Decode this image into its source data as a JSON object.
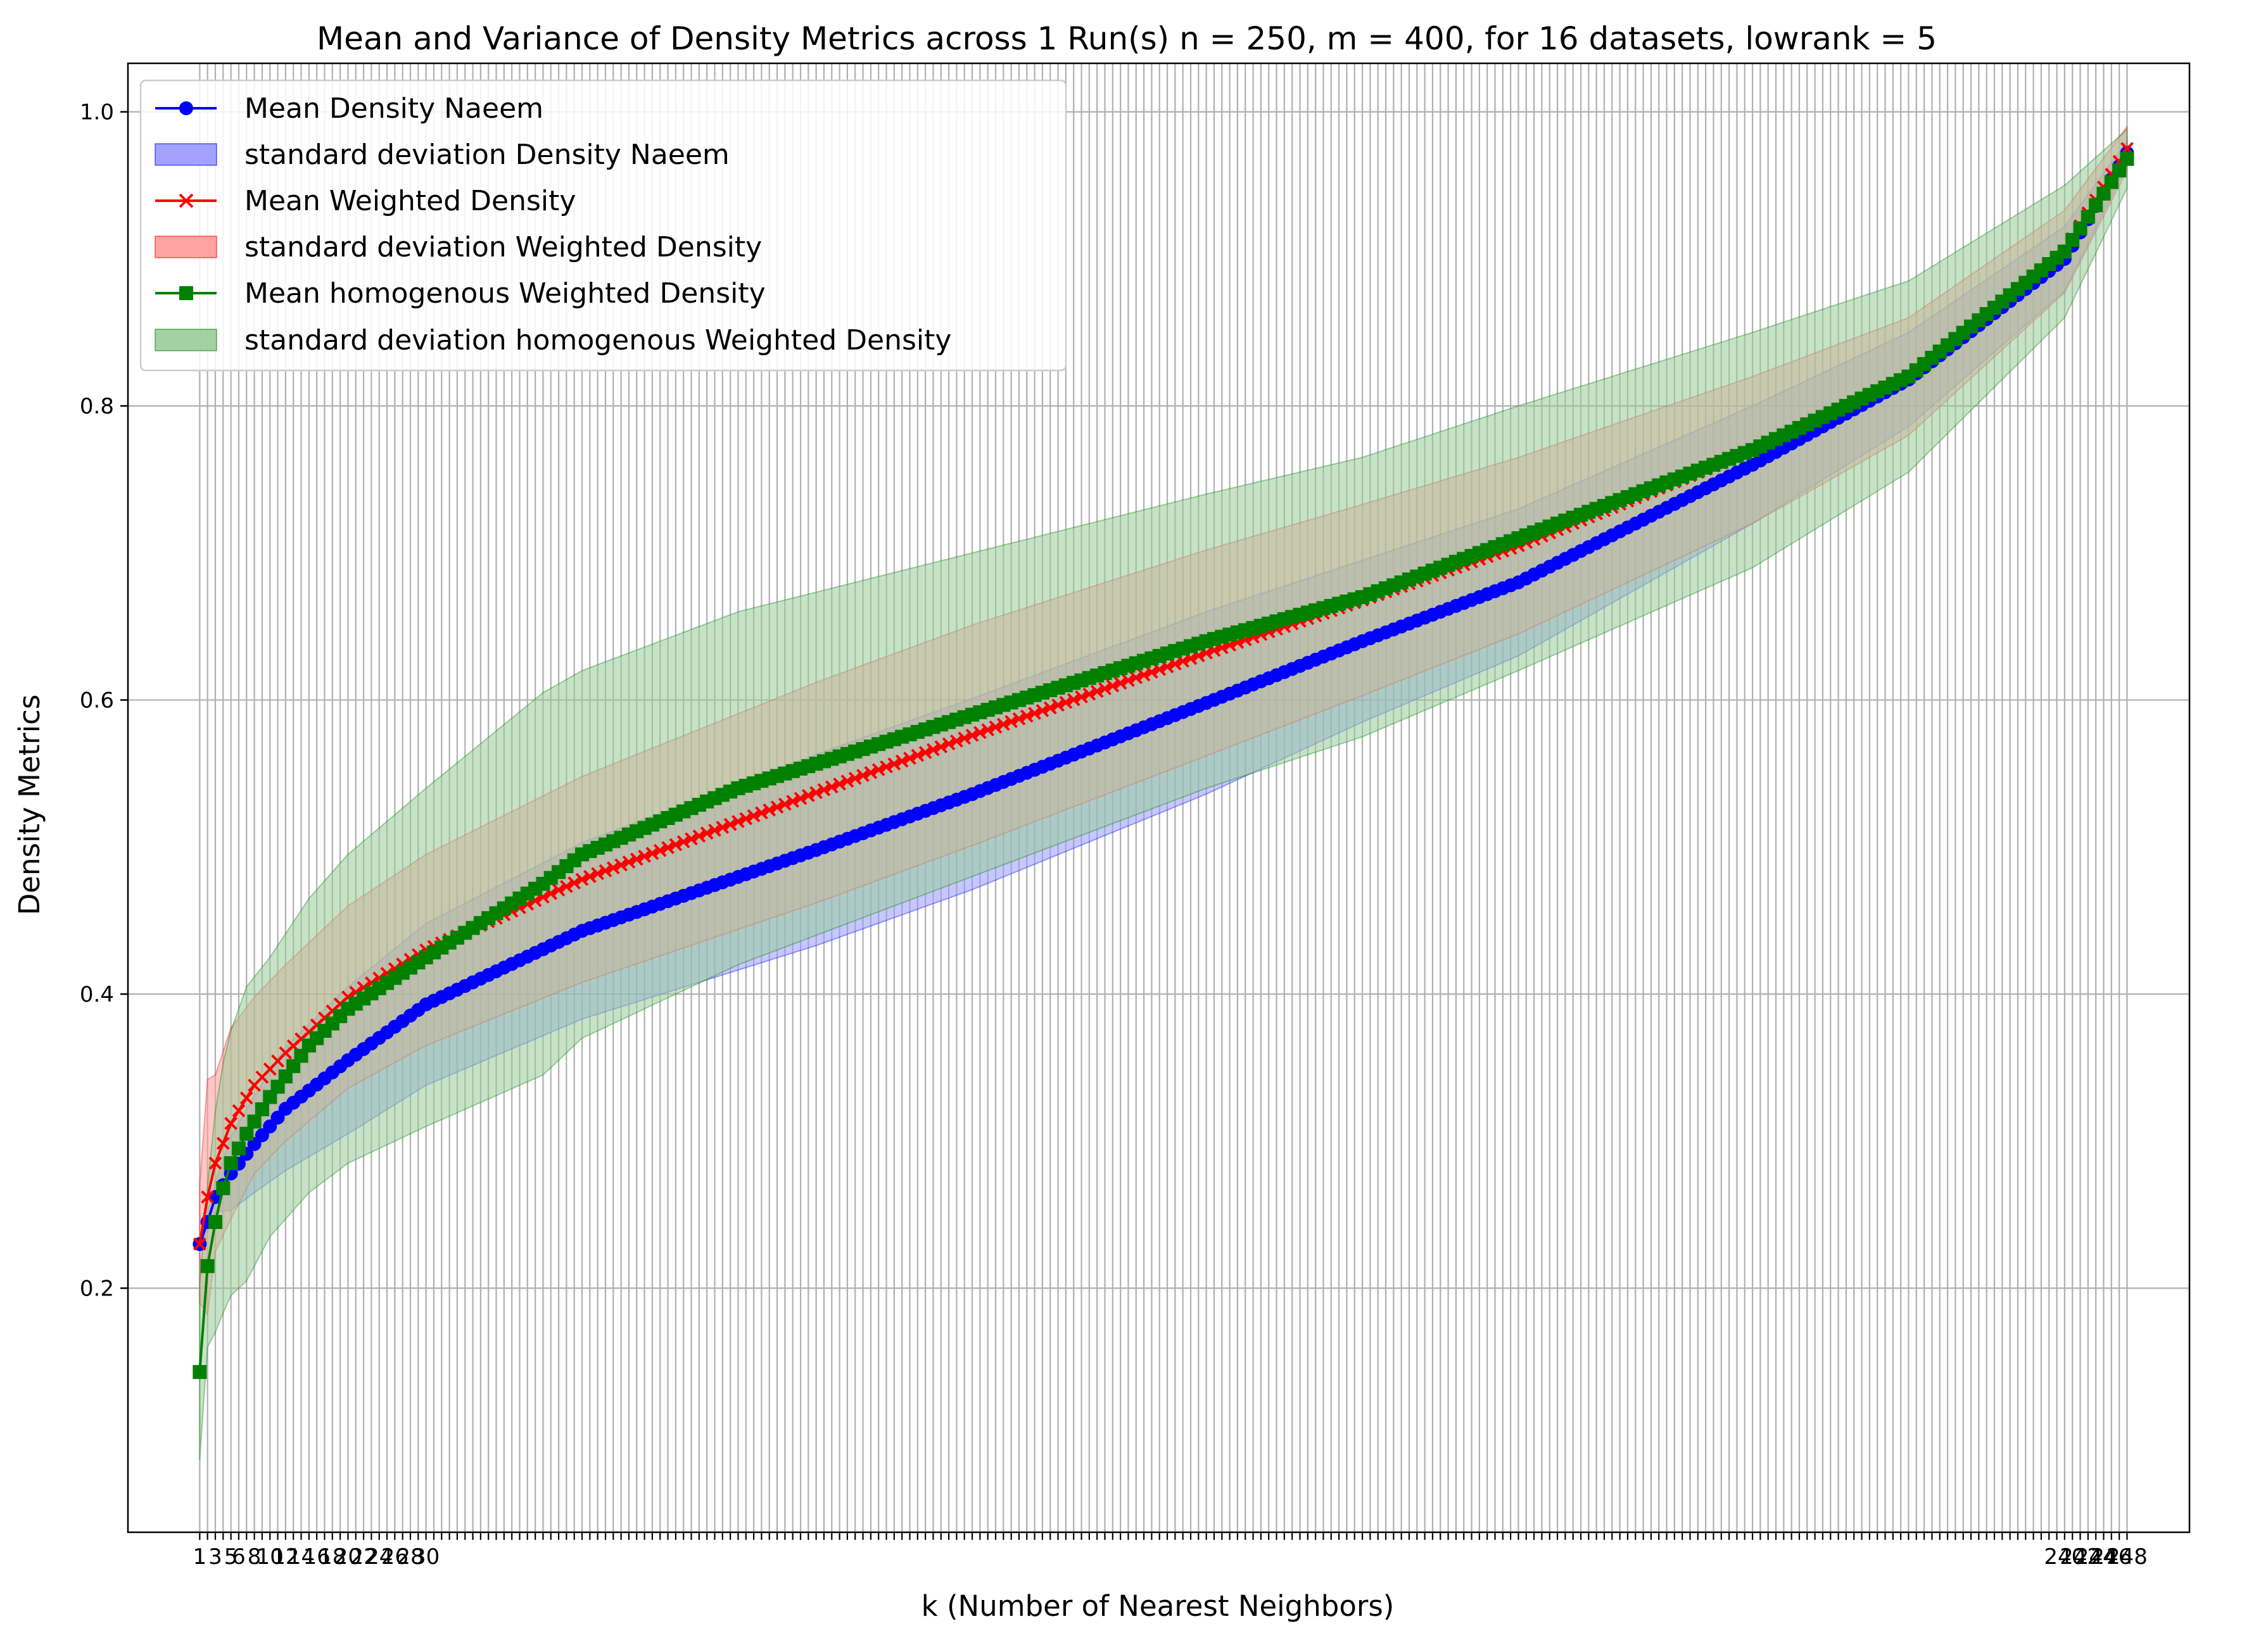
{
  "chart_data": {
    "type": "line",
    "title": "Mean and Variance of Density Metrics across 1 Run(s) n  = 250, m  = 400, for 16 datasets, lowrank = 5",
    "xlabel": "k (Number of Nearest Neighbors)",
    "ylabel": "Density Metrics",
    "xlim": [
      -8.2,
      256
    ],
    "ylim": [
      0.034,
      1.033
    ],
    "yticks": [
      0.2,
      0.4,
      0.6,
      0.8,
      1.0
    ],
    "ytick_labels": [
      "0.2",
      "0.4",
      "0.6",
      "0.8",
      "1.0"
    ],
    "x_first": 1,
    "x_last": 248,
    "xtick_labels_start": [
      "1",
      "3",
      "5",
      "6",
      "8",
      "10",
      "12",
      "14",
      "16",
      "18",
      "20",
      "22",
      "24",
      "26",
      "28",
      "30"
    ],
    "xtick_labels_end": [
      "240",
      "242",
      "244",
      "246",
      "248"
    ],
    "grid": true,
    "legend_position": "upper-left",
    "series": [
      {
        "name": "Mean Density Naeem",
        "band_name": "standard deviation Density Naeem",
        "color": "#0000ff",
        "marker": "circle",
        "anchors_x": [
          1,
          2,
          3,
          5,
          8,
          12,
          20,
          30,
          50,
          80,
          100,
          130,
          150,
          170,
          200,
          220,
          240,
          248
        ],
        "mean": [
          0.23,
          0.245,
          0.262,
          0.278,
          0.298,
          0.322,
          0.355,
          0.393,
          0.443,
          0.498,
          0.536,
          0.598,
          0.64,
          0.68,
          0.76,
          0.818,
          0.9,
          0.972
        ],
        "std": [
          0.004,
          0.006,
          0.01,
          0.025,
          0.033,
          0.042,
          0.05,
          0.055,
          0.06,
          0.065,
          0.065,
          0.062,
          0.055,
          0.05,
          0.04,
          0.032,
          0.022,
          0.008
        ]
      },
      {
        "name": "Mean Weighted Density",
        "band_name": "standard deviation Weighted Density",
        "color": "#ff0000",
        "marker": "x",
        "anchors_x": [
          1,
          2,
          3,
          5,
          8,
          12,
          20,
          30,
          50,
          80,
          100,
          130,
          150,
          170,
          200,
          220,
          240,
          248
        ],
        "mean": [
          0.23,
          0.262,
          0.285,
          0.312,
          0.338,
          0.36,
          0.398,
          0.43,
          0.478,
          0.537,
          0.576,
          0.632,
          0.668,
          0.705,
          0.77,
          0.82,
          0.905,
          0.975
        ],
        "std": [
          0.04,
          0.08,
          0.06,
          0.065,
          0.06,
          0.06,
          0.062,
          0.065,
          0.07,
          0.075,
          0.075,
          0.07,
          0.065,
          0.06,
          0.05,
          0.04,
          0.028,
          0.015
        ]
      },
      {
        "name": "Mean homogenous Weighted Density",
        "band_name": "standard deviation homogenous Weighted Density",
        "color": "#008000",
        "marker": "square",
        "anchors_x": [
          1,
          2,
          3,
          4,
          5,
          7,
          10,
          15,
          20,
          30,
          45,
          50,
          70,
          100,
          130,
          150,
          170,
          200,
          220,
          240,
          248
        ],
        "mean": [
          0.143,
          0.215,
          0.245,
          0.268,
          0.285,
          0.305,
          0.33,
          0.365,
          0.39,
          0.425,
          0.475,
          0.495,
          0.54,
          0.59,
          0.64,
          0.67,
          0.71,
          0.77,
          0.82,
          0.905,
          0.968
        ],
        "std": [
          0.06,
          0.055,
          0.075,
          0.085,
          0.09,
          0.1,
          0.095,
          0.1,
          0.105,
          0.115,
          0.13,
          0.125,
          0.12,
          0.11,
          0.1,
          0.095,
          0.09,
          0.08,
          0.065,
          0.045,
          0.02
        ]
      }
    ],
    "band_colors": {
      "naeem": "#9999ff",
      "weighted": "#ff9999",
      "homogenous": "#99cc99"
    }
  }
}
